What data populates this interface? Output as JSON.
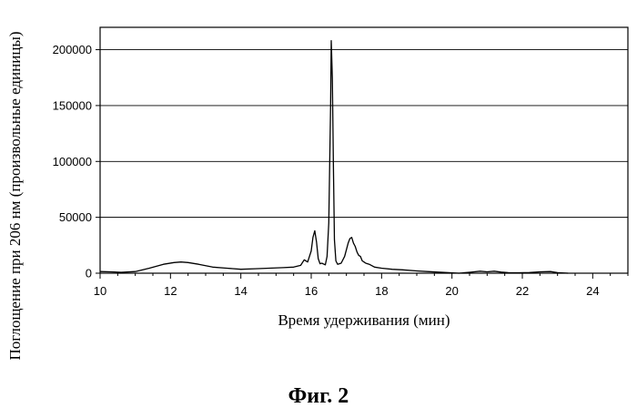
{
  "chart_data": {
    "type": "line",
    "xlabel": "Время удерживания (мин)",
    "ylabel": "Поглощение  при 206 нм (произвольные единицы)",
    "xlim": [
      10,
      25
    ],
    "ylim": [
      0,
      220000
    ],
    "x_ticks": [
      10,
      12,
      14,
      16,
      18,
      20,
      22,
      24
    ],
    "y_ticks": [
      0,
      50000,
      100000,
      150000,
      200000
    ],
    "grid": "horizontal",
    "series": [
      {
        "color": "#000000",
        "x": [
          10.0,
          10.3,
          10.6,
          11.0,
          11.4,
          11.8,
          12.1,
          12.3,
          12.5,
          12.8,
          13.2,
          13.6,
          14.0,
          14.4,
          14.8,
          15.2,
          15.5,
          15.7,
          15.8,
          15.9,
          16.0,
          16.05,
          16.1,
          16.15,
          16.2,
          16.25,
          16.3,
          16.4,
          16.45,
          16.5,
          16.55,
          16.57,
          16.6,
          16.63,
          16.66,
          16.7,
          16.75,
          16.85,
          16.95,
          17.05,
          17.1,
          17.15,
          17.2,
          17.25,
          17.3,
          17.35,
          17.4,
          17.45,
          17.5,
          17.55,
          17.65,
          17.8,
          18.0,
          18.3,
          18.6,
          19.0,
          19.3,
          19.6,
          19.9,
          20.2,
          20.5,
          20.8,
          21.0,
          21.2,
          21.4,
          21.6,
          21.9,
          22.2,
          22.5,
          22.8,
          23.0,
          23.3
        ],
        "y": [
          1500,
          1200,
          800,
          1500,
          4500,
          8000,
          9500,
          10000,
          9500,
          8000,
          5500,
          4500,
          3500,
          4000,
          4500,
          5000,
          5500,
          7000,
          12000,
          10000,
          20000,
          32000,
          38000,
          28000,
          13000,
          8500,
          9000,
          7500,
          15000,
          45000,
          150000,
          208000,
          175000,
          95000,
          30000,
          11000,
          8000,
          9000,
          15000,
          27000,
          31000,
          32000,
          27000,
          24000,
          19000,
          16000,
          15000,
          11000,
          10000,
          9000,
          8000,
          5500,
          4500,
          3500,
          3000,
          2000,
          1500,
          1000,
          500,
          0,
          800,
          1800,
          1200,
          1800,
          1000,
          500,
          400,
          600,
          1200,
          1500,
          500,
          0
        ]
      }
    ]
  },
  "caption": "Фиг. 2"
}
